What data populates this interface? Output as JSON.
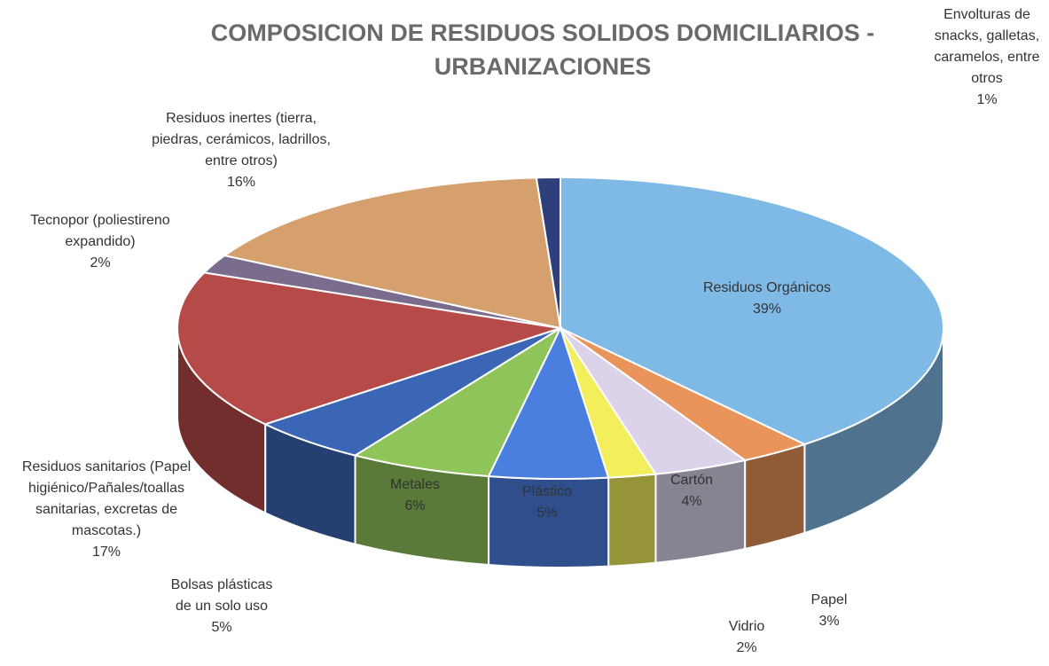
{
  "chart_data": {
    "type": "pie3d",
    "title": "COMPOSICION DE RESIDUOS SOLIDOS DOMICILIARIOS - URBANIZACIONES",
    "categories": [
      "Residuos Orgánicos",
      "Papel",
      "Cartón",
      "Vidrio",
      "Plástico",
      "Metales",
      "Bolsas plásticas de un solo uso",
      "Residuos sanitarios (Papel higiénico/Pañales/toallas sanitarias, excretas de mascotas.)",
      "Tecnopor (poliestireno expandido)",
      "Residuos inertes (tierra, piedras, cerámicos, ladrillos, entre otros)",
      "Envolturas de snacks, galletas, caramelos, entre otros"
    ],
    "values": [
      39,
      3,
      4,
      2,
      5,
      6,
      5,
      17,
      2,
      16,
      1
    ],
    "value_labels": [
      "39%",
      "3%",
      "4%",
      "2%",
      "5%",
      "6%",
      "5%",
      "17%",
      "2%",
      "16%",
      "1%"
    ],
    "colors": [
      "#7fb9e6",
      "#e8945a",
      "#dcd3ea",
      "#f2ee5c",
      "#4a7fe0",
      "#8fc45a",
      "#3b66b6",
      "#b64a48",
      "#7a6c8c",
      "#d6a06e",
      "#2f3f7c"
    ]
  }
}
